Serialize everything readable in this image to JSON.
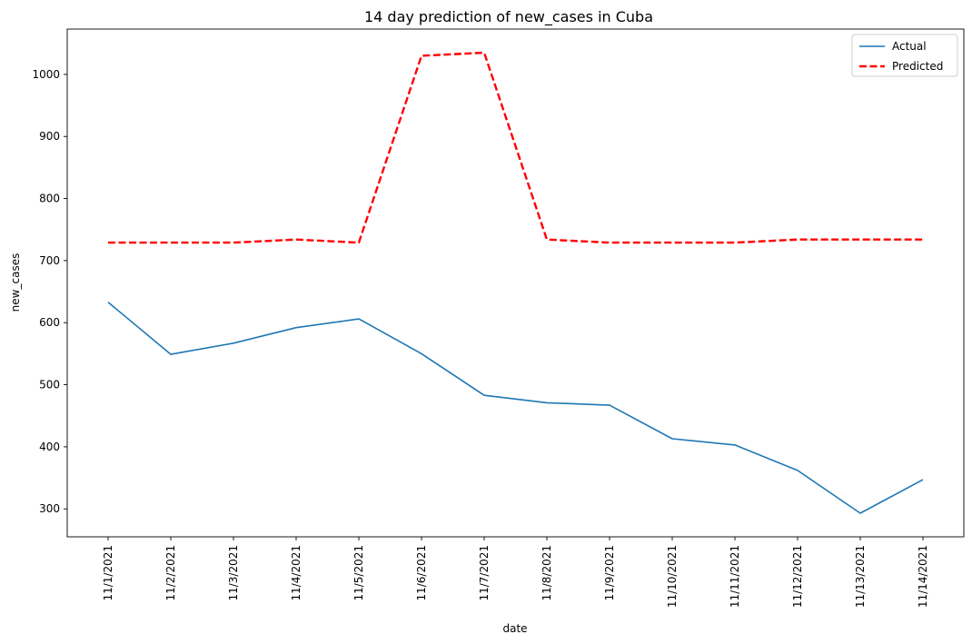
{
  "chart_data": {
    "type": "line",
    "title": "14 day prediction of new_cases in Cuba",
    "xlabel": "date",
    "ylabel": "new_cases",
    "categories": [
      "11/1/2021",
      "11/2/2021",
      "11/3/2021",
      "11/4/2021",
      "11/5/2021",
      "11/6/2021",
      "11/7/2021",
      "11/8/2021",
      "11/9/2021",
      "11/10/2021",
      "11/11/2021",
      "11/12/2021",
      "11/13/2021",
      "11/14/2021"
    ],
    "series": [
      {
        "name": "Actual",
        "color": "#1f77b4",
        "style": "solid",
        "values": [
          633,
          549,
          567,
          592,
          606,
          550,
          483,
          471,
          467,
          413,
          403,
          362,
          293,
          347
        ]
      },
      {
        "name": "Predicted",
        "color": "#ff0000",
        "style": "dashed",
        "values": [
          729,
          729,
          729,
          734,
          729,
          1030,
          1035,
          734,
          729,
          729,
          729,
          734,
          734,
          734
        ]
      }
    ],
    "yticks": [
      300,
      400,
      500,
      600,
      700,
      800,
      900,
      1000
    ],
    "ylim": [
      255,
      1073
    ],
    "grid": false,
    "legend": "top-right"
  }
}
